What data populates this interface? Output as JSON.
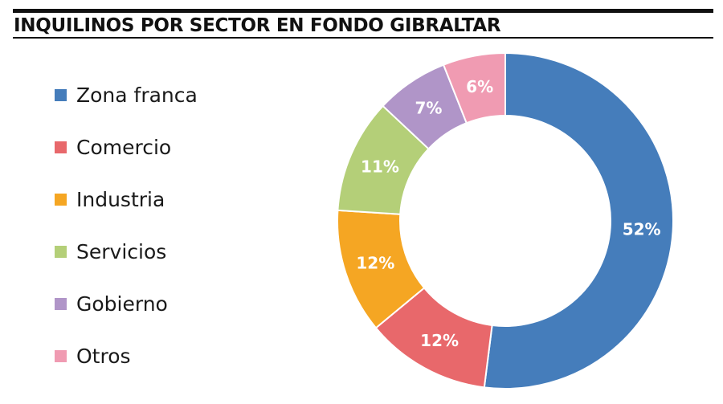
{
  "header": {
    "title": "INQUILINOS POR SECTOR EN FONDO GIBRALTAR"
  },
  "chart_data": {
    "type": "pie",
    "style": "donut",
    "title": "INQUILINOS POR SECTOR EN FONDO GIBRALTAR",
    "legend_position": "left",
    "categories": [
      "Zona franca",
      "Comercio",
      "Industria",
      "Servicios",
      "Gobierno",
      "Otros"
    ],
    "values": [
      52,
      12,
      12,
      11,
      7,
      6
    ],
    "value_labels": [
      "52%",
      "12%",
      "12%",
      "11%",
      "7%",
      "6%"
    ],
    "colors": [
      "#457dbb",
      "#e8686b",
      "#f5a623",
      "#b4cf78",
      "#b095c8",
      "#f09bb2"
    ]
  }
}
